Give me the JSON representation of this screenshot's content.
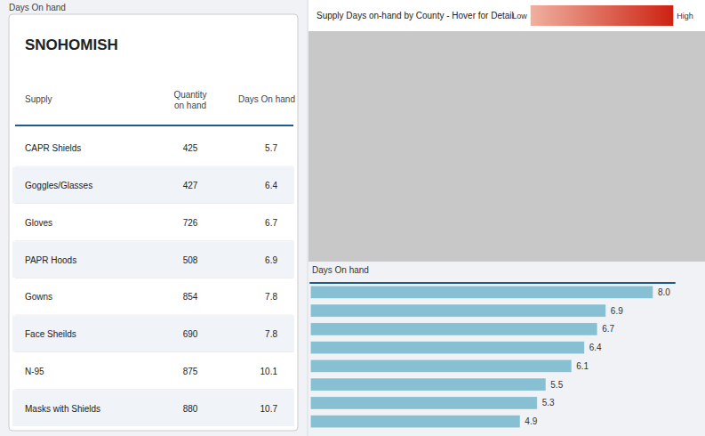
{
  "chart_data": [
    {
      "type": "table",
      "title": "SNOHOMISH",
      "subtitle": "Days On hand",
      "columns": [
        "Supply",
        "Quantity\non hand",
        "Days On hand"
      ],
      "rows": [
        [
          "CAPR Shields",
          "425",
          "5.7"
        ],
        [
          "Goggles/Glasses",
          "427",
          "6.4"
        ],
        [
          "Gloves",
          "726",
          "6.7"
        ],
        [
          "PAPR Hoods",
          "508",
          "6.9"
        ],
        [
          "Gowns",
          "854",
          "7.8"
        ],
        [
          "Face Sheilds",
          "690",
          "7.8"
        ],
        [
          "N-95",
          "875",
          "10.1"
        ],
        [
          "Masks with Shields",
          "880",
          "10.7"
        ]
      ]
    },
    {
      "type": "map",
      "title": "Supply Days on-hand by County - Hover for Detail",
      "annotations": [
        "Low",
        "High"
      ],
      "colors": [
        "#F0B0A0",
        "#CC2211"
      ]
    },
    {
      "type": "bar",
      "orientation": "horizontal",
      "title": "Days On hand",
      "categories": [
        null,
        null,
        null,
        null,
        null,
        null,
        null,
        null
      ],
      "values": [
        8.0,
        6.9,
        6.7,
        6.4,
        6.1,
        5.5,
        5.3,
        4.9
      ],
      "value_labels": [
        "8.0",
        "6.9",
        "6.7",
        "6.4",
        "6.1",
        "5.5",
        "5.3",
        "4.9"
      ],
      "color": "#87C0D3",
      "xlim": [
        0,
        8.5
      ],
      "xticks": [],
      "data_labels": true,
      "tick_labels": false,
      "grid": false
    }
  ]
}
